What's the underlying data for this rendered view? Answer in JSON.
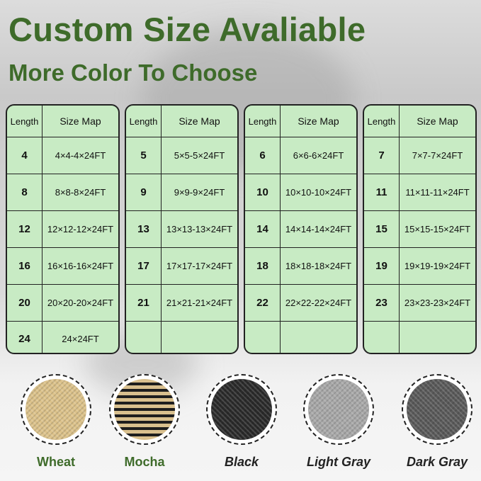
{
  "title": "Custom Size Avaliable",
  "subtitle": "More Color To Choose",
  "table_headers": {
    "length": "Length",
    "size_map": "Size Map"
  },
  "tables": [
    [
      [
        "4",
        "4×4-4×24FT"
      ],
      [
        "8",
        "8×8-8×24FT"
      ],
      [
        "12",
        "12×12-12×24FT"
      ],
      [
        "16",
        "16×16-16×24FT"
      ],
      [
        "20",
        "20×20-20×24FT"
      ],
      [
        "24",
        "24×24FT"
      ]
    ],
    [
      [
        "5",
        "5×5-5×24FT"
      ],
      [
        "9",
        "9×9-9×24FT"
      ],
      [
        "13",
        "13×13-13×24FT"
      ],
      [
        "17",
        "17×17-17×24FT"
      ],
      [
        "21",
        "21×21-21×24FT"
      ],
      [
        "",
        ""
      ]
    ],
    [
      [
        "6",
        "6×6-6×24FT"
      ],
      [
        "10",
        "10×10-10×24FT"
      ],
      [
        "14",
        "14×14-14×24FT"
      ],
      [
        "18",
        "18×18-18×24FT"
      ],
      [
        "22",
        "22×22-22×24FT"
      ],
      [
        "",
        ""
      ]
    ],
    [
      [
        "7",
        "7×7-7×24FT"
      ],
      [
        "11",
        "11×11-11×24FT"
      ],
      [
        "15",
        "15×15-15×24FT"
      ],
      [
        "19",
        "19×19-19×24FT"
      ],
      [
        "23",
        "23×23-23×24FT"
      ],
      [
        "",
        ""
      ]
    ]
  ],
  "colors": [
    {
      "name": "Wheat",
      "swatch": "#dcc28a"
    },
    {
      "name": "Mocha",
      "swatch": "#b59a68"
    },
    {
      "name": "Black",
      "swatch": "#2a2a2a"
    },
    {
      "name": "Light Gray",
      "swatch": "#a8a8a8"
    },
    {
      "name": "Dark Gray",
      "swatch": "#5a5a5a"
    }
  ],
  "accent": "#3e6b2a"
}
